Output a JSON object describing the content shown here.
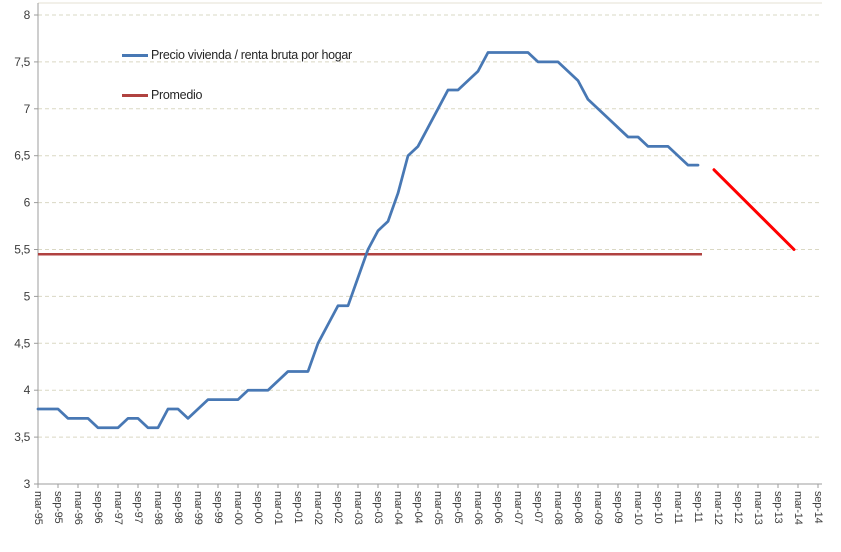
{
  "chart_data": {
    "type": "line",
    "title": "",
    "x_axis": {
      "tick_labels": [
        "mar-95",
        "sep-95",
        "mar-96",
        "sep-96",
        "mar-97",
        "sep-97",
        "mar-98",
        "sep-98",
        "mar-99",
        "sep-99",
        "mar-00",
        "sep-00",
        "mar-01",
        "sep-01",
        "mar-02",
        "sep-02",
        "mar-03",
        "sep-03",
        "mar-04",
        "sep-04",
        "mar-05",
        "sep-05",
        "mar-06",
        "sep-06",
        "mar-07",
        "sep-07",
        "mar-08",
        "sep-08",
        "mar-09",
        "sep-09",
        "mar-10",
        "sep-10",
        "mar-11",
        "sep-11",
        "mar-12",
        "sep-12",
        "mar-13",
        "sep-13",
        "mar-14",
        "sep-14"
      ],
      "tick_interval": "6 months"
    },
    "y_axis": {
      "min": 3,
      "max": 8,
      "values": [
        8,
        7.5,
        7,
        6.5,
        6,
        5.5,
        5,
        4.5,
        4,
        3.5,
        3
      ],
      "labels": [
        "8",
        "7,5",
        "7",
        "6,5",
        "6",
        "5,5",
        "5",
        "4,5",
        "4",
        "3,5",
        "3"
      ]
    },
    "gridlines": {
      "style": "dashed",
      "color": "#DAD8C4",
      "interval": 0.5
    },
    "series": [
      {
        "id": "ratio",
        "name": "Precio vivienda / renta bruta por hogar",
        "color": "#4878B4",
        "frequency": "quarterly",
        "start_period": "mar-95",
        "end_period": "sep-11",
        "values": [
          3.8,
          3.8,
          3.8,
          3.7,
          3.7,
          3.7,
          3.6,
          3.6,
          3.6,
          3.7,
          3.7,
          3.6,
          3.6,
          3.8,
          3.8,
          3.7,
          3.8,
          3.9,
          3.9,
          3.9,
          3.9,
          4.0,
          4.0,
          4.0,
          4.1,
          4.2,
          4.2,
          4.2,
          4.5,
          4.7,
          4.9,
          4.9,
          5.2,
          5.5,
          5.7,
          5.8,
          6.1,
          6.5,
          6.6,
          6.8,
          7.0,
          7.2,
          7.2,
          7.3,
          7.4,
          7.6,
          7.6,
          7.6,
          7.6,
          7.6,
          7.5,
          7.5,
          7.5,
          7.4,
          7.3,
          7.1,
          7.0,
          6.9,
          6.8,
          6.7,
          6.7,
          6.6,
          6.6,
          6.6,
          6.5,
          6.4,
          6.4
        ]
      },
      {
        "id": "promedio",
        "name": "Promedio",
        "color": "#B04240",
        "value": 5.45,
        "x_start_index": 0,
        "x_end_index": 33.2
      },
      {
        "id": "forecast",
        "name": "",
        "color": "#FF0000",
        "points": [
          {
            "x_half_year_index": 33.8,
            "value": 6.35
          },
          {
            "x_half_year_index": 37.8,
            "value": 5.5
          }
        ]
      }
    ],
    "legend": {
      "position": "inside-top-left",
      "items": [
        {
          "label": "Precio vivienda / renta bruta por hogar",
          "color": "#4878B4"
        },
        {
          "label": "Promedio",
          "color": "#B04240"
        }
      ]
    }
  }
}
